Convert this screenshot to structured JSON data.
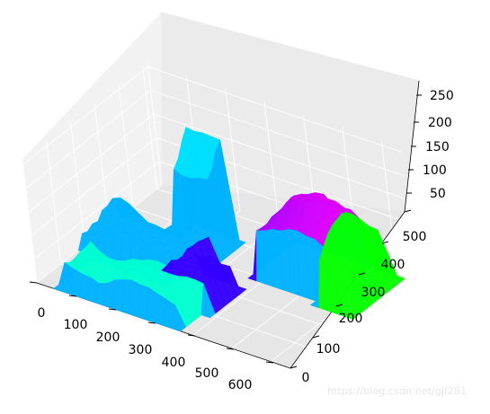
{
  "chart_data": {
    "type": "surface",
    "x_ticks": [
      "0",
      "100",
      "200",
      "300",
      "400",
      "500",
      "600"
    ],
    "y_ticks": [
      "0",
      "100",
      "200",
      "300",
      "400",
      "500"
    ],
    "z_ticks": [
      "50",
      "100",
      "150",
      "200",
      "250"
    ],
    "xlim": [
      0,
      650
    ],
    "ylim": [
      0,
      520
    ],
    "zlim": [
      0,
      260
    ],
    "colormap": "hsv",
    "grid": true,
    "regions": [
      {
        "x": [
          0,
          260
        ],
        "y": [
          180,
          330
        ],
        "z": 40
      },
      {
        "x": [
          160,
          260
        ],
        "y": [
          320,
          400
        ],
        "z": 230
      },
      {
        "x": [
          60,
          360
        ],
        "y": [
          20,
          140
        ],
        "z": 60
      },
      {
        "x": [
          380,
          620
        ],
        "y": [
          300,
          460
        ],
        "z": 160
      }
    ]
  },
  "watermark": "https://blog.csdn.net/gjf281"
}
